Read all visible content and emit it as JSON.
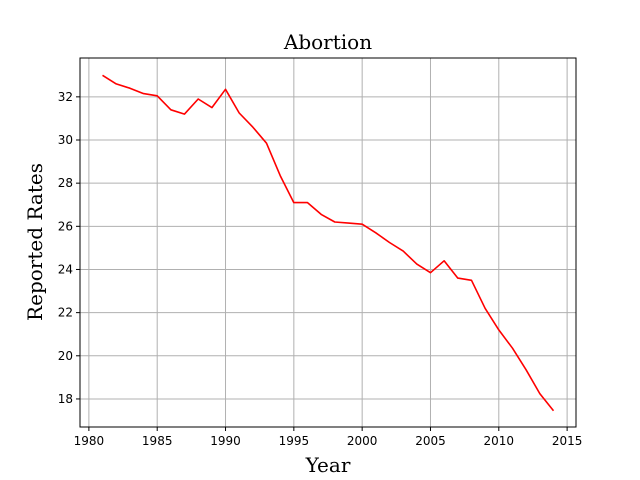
{
  "chart_data": {
    "type": "line",
    "title": "Abortion",
    "xlabel": "Year",
    "ylabel": "Reported Rates",
    "xlim": [
      1979.35,
      2015.65
    ],
    "ylim": [
      16.7,
      33.8
    ],
    "xticks": [
      1980,
      1985,
      1990,
      1995,
      2000,
      2005,
      2010,
      2015
    ],
    "yticks": [
      18,
      20,
      22,
      24,
      26,
      28,
      30,
      32
    ],
    "grid": true,
    "legend": "none",
    "series": [
      {
        "color": "#ff0000",
        "x": [
          1981,
          1982,
          1983,
          1984,
          1985,
          1986,
          1987,
          1988,
          1989,
          1990,
          1991,
          1992,
          1993,
          1994,
          1995,
          1996,
          1997,
          1998,
          1999,
          2000,
          2001,
          2002,
          2003,
          2004,
          2005,
          2006,
          2007,
          2008,
          2009,
          2010,
          2011,
          2012,
          2013,
          2014
        ],
        "y": [
          33.0,
          32.6,
          32.4,
          32.15,
          32.05,
          31.4,
          31.2,
          31.9,
          31.5,
          32.35,
          31.25,
          30.6,
          29.85,
          28.35,
          27.1,
          27.1,
          26.55,
          26.2,
          26.15,
          26.1,
          25.7,
          25.25,
          24.85,
          24.25,
          23.85,
          24.4,
          23.6,
          23.5,
          22.2,
          21.2,
          20.35,
          19.35,
          18.25,
          17.45
        ]
      }
    ]
  }
}
